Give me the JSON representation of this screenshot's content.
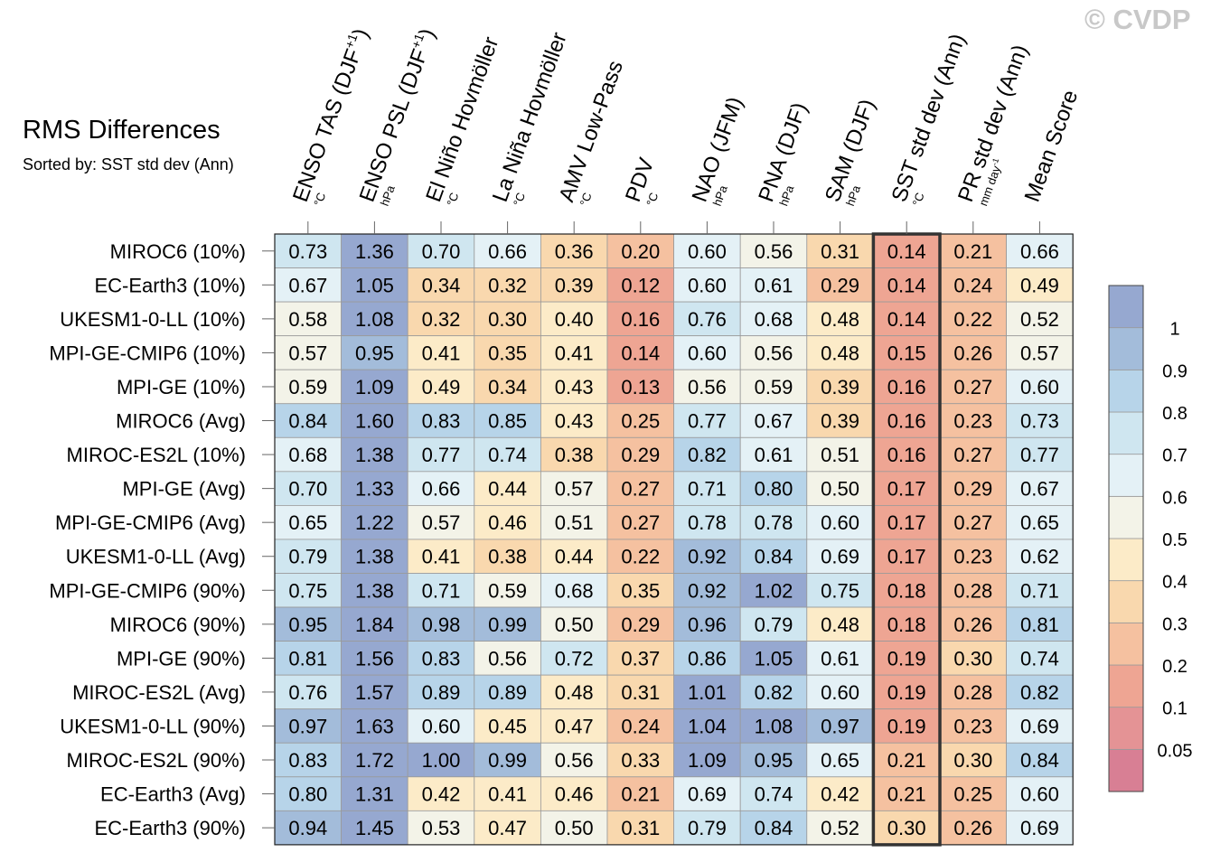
{
  "header": {
    "title": "RMS Differences",
    "subtitle": "Sorted by: SST std dev (Ann)",
    "watermark": "© CVDP"
  },
  "chart_data": {
    "type": "heatmap",
    "columns": [
      {
        "name": "ENSO TAS (DJF",
        "sup": "+1",
        "suffix": ")",
        "unit": "°C"
      },
      {
        "name": "ENSO PSL (DJF",
        "sup": "+1",
        "suffix": ")",
        "unit": "hPa"
      },
      {
        "name": "El Niño Hovmöller",
        "sup": "",
        "suffix": "",
        "unit": "°C"
      },
      {
        "name": "La Niña Hovmöller",
        "sup": "",
        "suffix": "",
        "unit": "°C"
      },
      {
        "name": "AMV Low-Pass",
        "sup": "",
        "suffix": "",
        "unit": "°C"
      },
      {
        "name": "PDV",
        "sup": "",
        "suffix": "",
        "unit": "°C"
      },
      {
        "name": "NAO (JFM)",
        "sup": "",
        "suffix": "",
        "unit": "hPa"
      },
      {
        "name": "PNA (DJF)",
        "sup": "",
        "suffix": "",
        "unit": "hPa"
      },
      {
        "name": "SAM (DJF)",
        "sup": "",
        "suffix": "",
        "unit": "hPa"
      },
      {
        "name": "SST std dev (Ann)",
        "sup": "",
        "suffix": "",
        "unit": "°C"
      },
      {
        "name": "PR std dev (Ann)",
        "sup": "",
        "suffix": "",
        "unit": "mm day",
        "unit_sup": "-1"
      },
      {
        "name": "Mean Score",
        "sup": "",
        "suffix": "",
        "unit": ""
      }
    ],
    "rows": [
      "MIROC6 (10%)",
      "EC-Earth3 (10%)",
      "UKESM1-0-LL (10%)",
      "MPI-GE-CMIP6 (10%)",
      "MPI-GE (10%)",
      "MIROC6 (Avg)",
      "MIROC-ES2L (10%)",
      "MPI-GE (Avg)",
      "MPI-GE-CMIP6 (Avg)",
      "UKESM1-0-LL (Avg)",
      "MPI-GE-CMIP6 (90%)",
      "MIROC6 (90%)",
      "MPI-GE (90%)",
      "MIROC-ES2L (Avg)",
      "UKESM1-0-LL (90%)",
      "MIROC-ES2L (90%)",
      "EC-Earth3 (Avg)",
      "EC-Earth3 (90%)"
    ],
    "values": [
      [
        "0.73",
        "1.36",
        "0.70",
        "0.66",
        "0.36",
        "0.20",
        "0.60",
        "0.56",
        "0.31",
        "0.14",
        "0.21",
        "0.66"
      ],
      [
        "0.67",
        "1.05",
        "0.34",
        "0.32",
        "0.39",
        "0.12",
        "0.60",
        "0.61",
        "0.29",
        "0.14",
        "0.24",
        "0.49"
      ],
      [
        "0.58",
        "1.08",
        "0.32",
        "0.30",
        "0.40",
        "0.16",
        "0.76",
        "0.68",
        "0.48",
        "0.14",
        "0.22",
        "0.52"
      ],
      [
        "0.57",
        "0.95",
        "0.41",
        "0.35",
        "0.41",
        "0.14",
        "0.60",
        "0.56",
        "0.48",
        "0.15",
        "0.26",
        "0.57"
      ],
      [
        "0.59",
        "1.09",
        "0.49",
        "0.34",
        "0.43",
        "0.13",
        "0.56",
        "0.59",
        "0.39",
        "0.16",
        "0.27",
        "0.60"
      ],
      [
        "0.84",
        "1.60",
        "0.83",
        "0.85",
        "0.43",
        "0.25",
        "0.77",
        "0.67",
        "0.39",
        "0.16",
        "0.23",
        "0.73"
      ],
      [
        "0.68",
        "1.38",
        "0.77",
        "0.74",
        "0.38",
        "0.29",
        "0.82",
        "0.61",
        "0.51",
        "0.16",
        "0.27",
        "0.77"
      ],
      [
        "0.70",
        "1.33",
        "0.66",
        "0.44",
        "0.57",
        "0.27",
        "0.71",
        "0.80",
        "0.50",
        "0.17",
        "0.29",
        "0.67"
      ],
      [
        "0.65",
        "1.22",
        "0.57",
        "0.46",
        "0.51",
        "0.27",
        "0.78",
        "0.78",
        "0.60",
        "0.17",
        "0.27",
        "0.65"
      ],
      [
        "0.79",
        "1.38",
        "0.41",
        "0.38",
        "0.44",
        "0.22",
        "0.92",
        "0.84",
        "0.69",
        "0.17",
        "0.23",
        "0.62"
      ],
      [
        "0.75",
        "1.38",
        "0.71",
        "0.59",
        "0.68",
        "0.35",
        "0.92",
        "1.02",
        "0.75",
        "0.18",
        "0.28",
        "0.71"
      ],
      [
        "0.95",
        "1.84",
        "0.98",
        "0.99",
        "0.50",
        "0.29",
        "0.96",
        "0.79",
        "0.48",
        "0.18",
        "0.26",
        "0.81"
      ],
      [
        "0.81",
        "1.56",
        "0.83",
        "0.56",
        "0.72",
        "0.37",
        "0.86",
        "1.05",
        "0.61",
        "0.19",
        "0.30",
        "0.74"
      ],
      [
        "0.76",
        "1.57",
        "0.89",
        "0.89",
        "0.48",
        "0.31",
        "1.01",
        "0.82",
        "0.60",
        "0.19",
        "0.28",
        "0.82"
      ],
      [
        "0.97",
        "1.63",
        "0.60",
        "0.45",
        "0.47",
        "0.24",
        "1.04",
        "1.08",
        "0.97",
        "0.19",
        "0.23",
        "0.69"
      ],
      [
        "0.83",
        "1.72",
        "1.00",
        "0.99",
        "0.56",
        "0.33",
        "1.09",
        "0.95",
        "0.65",
        "0.21",
        "0.30",
        "0.84"
      ],
      [
        "0.80",
        "1.31",
        "0.42",
        "0.41",
        "0.46",
        "0.21",
        "0.69",
        "0.74",
        "0.42",
        "0.21",
        "0.25",
        "0.60"
      ],
      [
        "0.94",
        "1.45",
        "0.53",
        "0.47",
        "0.50",
        "0.31",
        "0.79",
        "0.84",
        "0.52",
        "0.30",
        "0.26",
        "0.69"
      ]
    ],
    "highlight_column": "SST std dev (Ann)",
    "colorbar": {
      "thresholds": [
        0.05,
        0.1,
        0.2,
        0.3,
        0.4,
        0.5,
        0.6,
        0.7,
        0.8,
        0.9,
        1
      ],
      "tick_labels": [
        "0.05",
        "0.1",
        "0.2",
        "0.3",
        "0.4",
        "0.5",
        "0.6",
        "0.7",
        "0.8",
        "0.9",
        "1"
      ],
      "colors": [
        "#d87f94",
        "#e49395",
        "#eea593",
        "#f5c1a0",
        "#f9d8ae",
        "#fcebc8",
        "#f3f3e8",
        "#e4f1f6",
        "#cfe6f0",
        "#b7d4e9",
        "#a3bcda",
        "#96a8d0"
      ]
    }
  }
}
